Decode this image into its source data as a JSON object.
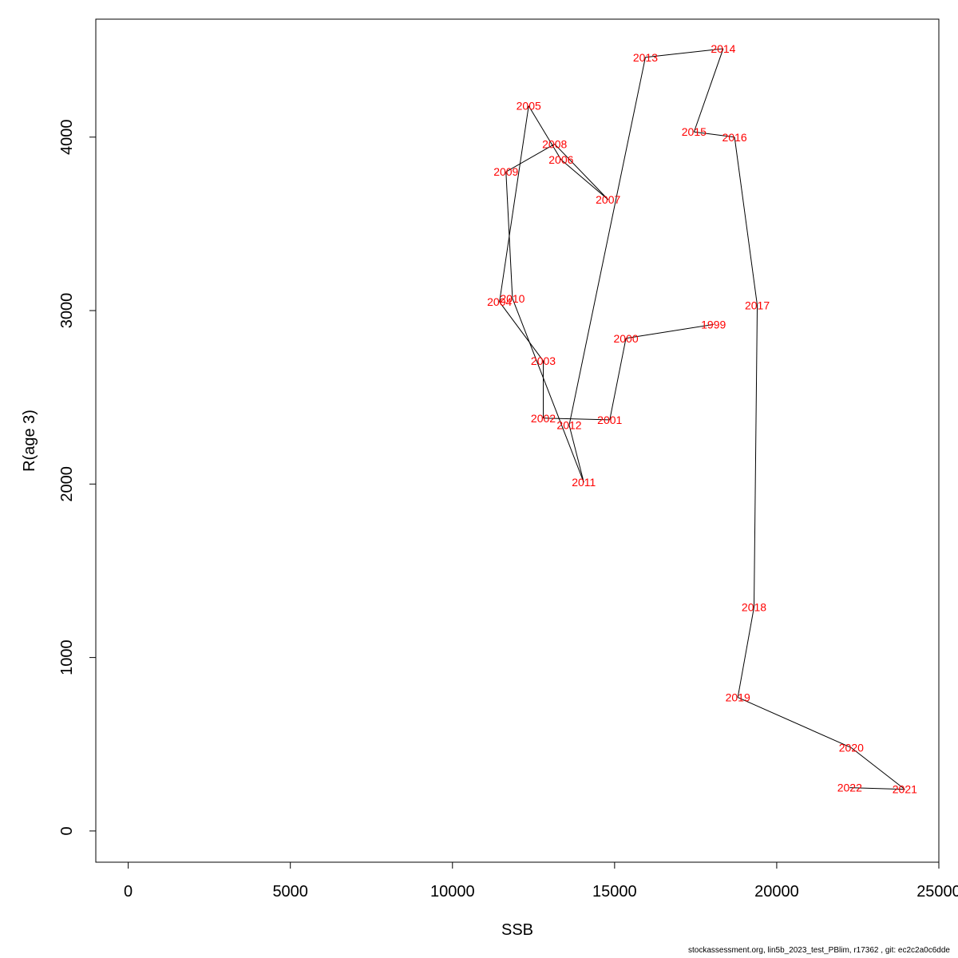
{
  "chart_data": {
    "type": "line",
    "xlabel": "SSB",
    "ylabel": "R(age 3)",
    "xlim": [
      -1000,
      25000
    ],
    "ylim": [
      -180,
      4680
    ],
    "xticks": [
      0,
      5000,
      10000,
      15000,
      20000,
      25000
    ],
    "yticks": [
      0,
      1000,
      2000,
      3000,
      4000
    ],
    "xtick_labels": [
      "0",
      "5000",
      "10000",
      "15000",
      "20000",
      "25000"
    ],
    "ytick_labels": [
      "0",
      "1000",
      "2000",
      "3000",
      "4000"
    ],
    "grid": false,
    "line_color": "#000000",
    "label_color": "#ff0000",
    "points": [
      {
        "year": "1999",
        "x": 18050,
        "y": 2920
      },
      {
        "year": "2000",
        "x": 15350,
        "y": 2840
      },
      {
        "year": "2001",
        "x": 14850,
        "y": 2370
      },
      {
        "year": "2002",
        "x": 12800,
        "y": 2380
      },
      {
        "year": "2003",
        "x": 12800,
        "y": 2710
      },
      {
        "year": "2004",
        "x": 11450,
        "y": 3050
      },
      {
        "year": "2005",
        "x": 12350,
        "y": 4180
      },
      {
        "year": "2006",
        "x": 13350,
        "y": 3870
      },
      {
        "year": "2007",
        "x": 14800,
        "y": 3640
      },
      {
        "year": "2008",
        "x": 13150,
        "y": 3960
      },
      {
        "year": "2009",
        "x": 11650,
        "y": 3800
      },
      {
        "year": "2010",
        "x": 11850,
        "y": 3070
      },
      {
        "year": "2011",
        "x": 14050,
        "y": 2010
      },
      {
        "year": "2012",
        "x": 13600,
        "y": 2340
      },
      {
        "year": "2013",
        "x": 15950,
        "y": 4460
      },
      {
        "year": "2014",
        "x": 18350,
        "y": 4510
      },
      {
        "year": "2015",
        "x": 17450,
        "y": 4030
      },
      {
        "year": "2016",
        "x": 18700,
        "y": 4000
      },
      {
        "year": "2017",
        "x": 19400,
        "y": 3030
      },
      {
        "year": "2018",
        "x": 19300,
        "y": 1290
      },
      {
        "year": "2019",
        "x": 18800,
        "y": 770
      },
      {
        "year": "2020",
        "x": 22300,
        "y": 480
      },
      {
        "year": "2021",
        "x": 23950,
        "y": 240
      },
      {
        "year": "2022",
        "x": 22250,
        "y": 250
      }
    ]
  },
  "footer": {
    "text": "stockassessment.org, lin5b_2023_test_PBlim, r17362 , git: ec2c2a0c6dde"
  }
}
